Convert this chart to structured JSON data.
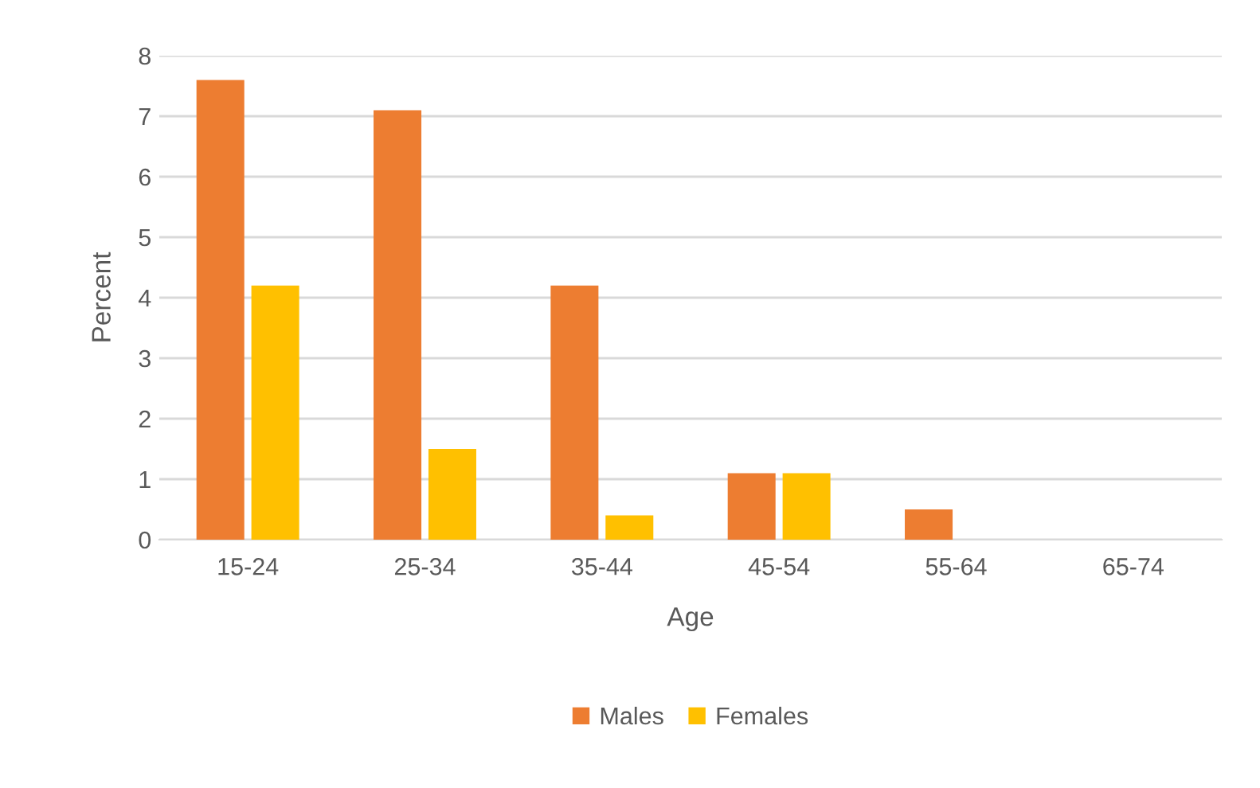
{
  "chart_data": {
    "type": "bar",
    "xlabel": "Age",
    "ylabel": "Percent",
    "categories": [
      "15-24",
      "25-34",
      "35-44",
      "45-54",
      "55-64",
      "65-74"
    ],
    "series": [
      {
        "name": "Males",
        "color": "#ed7d31",
        "values": [
          7.6,
          7.1,
          4.2,
          1.1,
          0.5,
          0
        ]
      },
      {
        "name": "Females",
        "color": "#ffc000",
        "values": [
          4.2,
          1.5,
          0.4,
          1.1,
          0,
          0
        ]
      }
    ],
    "ylim": [
      0,
      8
    ],
    "yticks": [
      0,
      1,
      2,
      3,
      4,
      5,
      6,
      7,
      8
    ],
    "grid": "y",
    "legend": "bottom"
  }
}
